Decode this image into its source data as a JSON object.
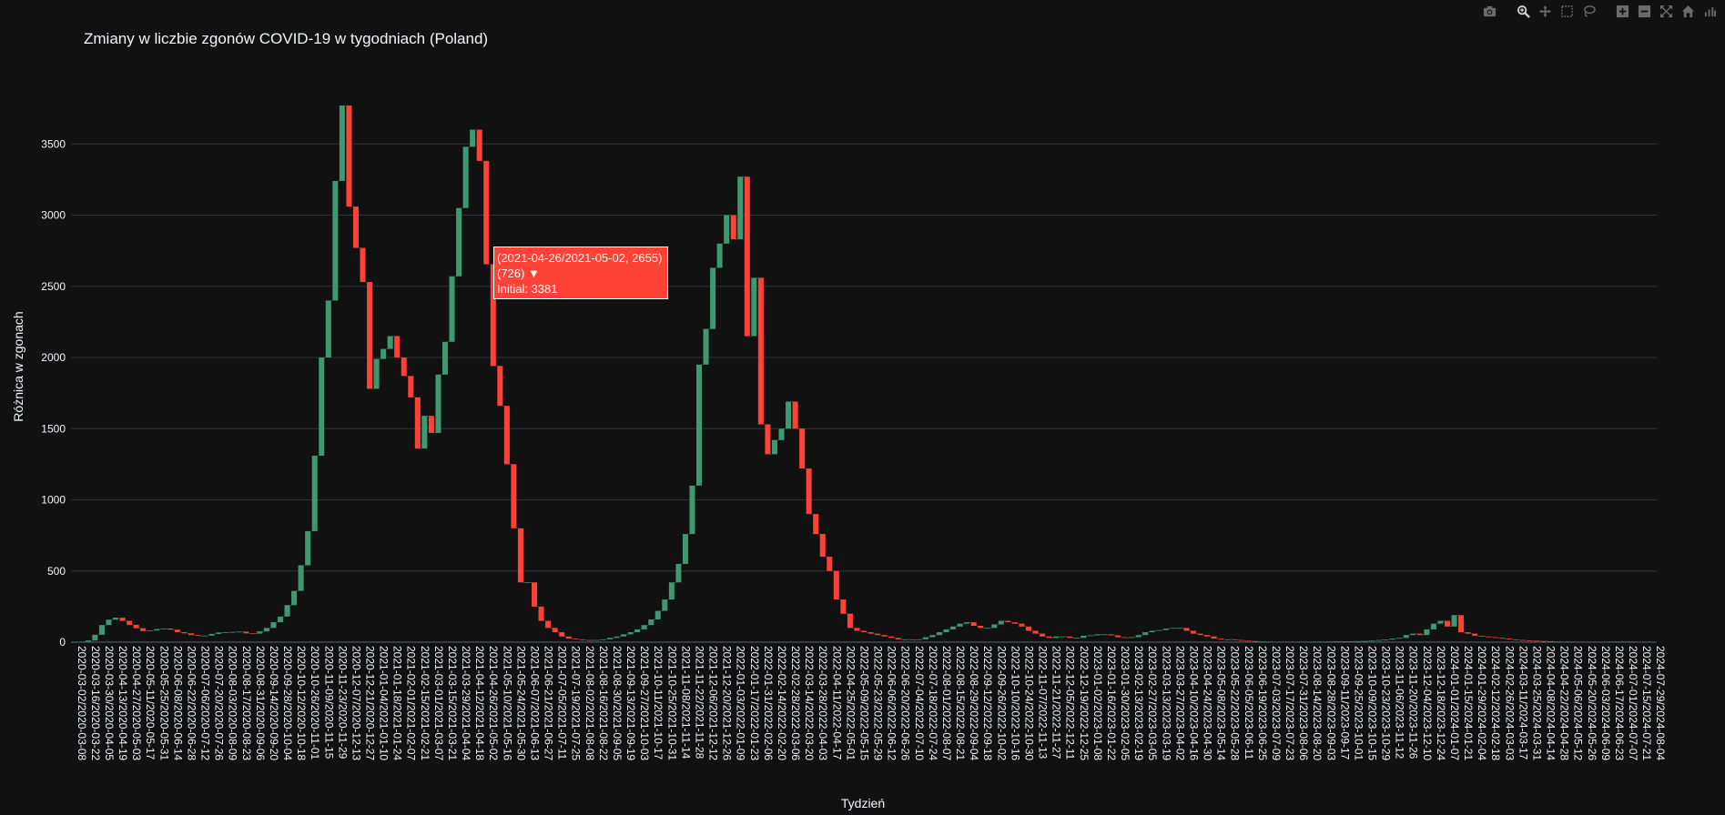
{
  "toolbar": {
    "buttons": [
      {
        "name": "camera-icon",
        "label": "Download plot as a png"
      },
      {
        "name": "zoom-icon",
        "label": "Zoom"
      },
      {
        "name": "pan-icon",
        "label": "Pan"
      },
      {
        "name": "box-select-icon",
        "label": "Box Select"
      },
      {
        "name": "lasso-select-icon",
        "label": "Lasso Select"
      },
      {
        "name": "zoom-in-icon",
        "label": "Zoom in"
      },
      {
        "name": "zoom-out-icon",
        "label": "Zoom out"
      },
      {
        "name": "autoscale-icon",
        "label": "Autoscale"
      },
      {
        "name": "home-icon",
        "label": "Reset axes"
      },
      {
        "name": "plotly-logo-icon",
        "label": "Produced with Plotly"
      }
    ]
  },
  "tooltip": {
    "line1": "(2021-04-26/2021-05-02, 2655)",
    "line2": "(726) ▼",
    "line3": "Initial: 3381"
  },
  "colors": {
    "increase": "#3d9970",
    "decrease": "#ff4136",
    "background": "#111111",
    "grid": "#283442",
    "text": "#f2f5fa"
  },
  "chart_data": {
    "type": "waterfall",
    "title": "Zmiany w liczbie zgonów COVID-19 w tygodniach (Poland)",
    "xlabel": "Tydzień",
    "ylabel": "Różnica w zgonach",
    "ylim": [
      0,
      4000
    ],
    "yticks": [
      0,
      500,
      1000,
      1500,
      2000,
      2500,
      3000,
      3500
    ],
    "grid": true,
    "start_week": "2020-03-02",
    "weekly_totals": [
      1,
      4,
      12,
      52,
      120,
      158,
      172,
      150,
      122,
      98,
      78,
      82,
      92,
      96,
      88,
      70,
      62,
      50,
      44,
      46,
      58,
      68,
      70,
      72,
      74,
      62,
      60,
      76,
      100,
      140,
      180,
      260,
      360,
      540,
      780,
      1310,
      2000,
      2400,
      3240,
      3770,
      3060,
      2770,
      2530,
      1780,
      1990,
      2060,
      2150,
      2000,
      1870,
      1720,
      1360,
      1590,
      1470,
      1880,
      2110,
      2570,
      3050,
      3480,
      3600,
      3381,
      2655,
      1940,
      1660,
      1250,
      800,
      420,
      420,
      250,
      150,
      100,
      70,
      40,
      25,
      20,
      15,
      12,
      15,
      20,
      30,
      40,
      55,
      70,
      90,
      120,
      160,
      220,
      300,
      420,
      550,
      760,
      1100,
      1950,
      2200,
      2630,
      2800,
      3000,
      2830,
      3270,
      2150,
      2560,
      1530,
      1320,
      1420,
      1500,
      1690,
      1500,
      1220,
      900,
      760,
      600,
      500,
      300,
      200,
      100,
      80,
      70,
      60,
      50,
      40,
      30,
      20,
      20,
      15,
      20,
      35,
      50,
      70,
      90,
      110,
      130,
      140,
      115,
      100,
      100,
      125,
      150,
      140,
      130,
      110,
      80,
      60,
      40,
      30,
      40,
      40,
      30,
      30,
      45,
      48,
      55,
      55,
      48,
      35,
      30,
      35,
      50,
      70,
      80,
      85,
      95,
      100,
      100,
      80,
      60,
      50,
      40,
      25,
      20,
      20,
      15,
      10,
      8,
      5,
      4,
      3,
      3,
      3,
      3,
      3,
      3,
      3,
      4,
      4,
      5,
      6,
      5,
      6,
      7,
      8,
      10,
      15,
      18,
      25,
      30,
      50,
      60,
      50,
      90,
      130,
      150,
      110,
      190,
      70,
      60,
      45,
      40,
      35,
      30,
      25,
      20,
      15,
      12,
      10,
      8,
      7,
      5,
      4,
      4,
      3,
      3,
      3,
      3,
      3,
      3,
      4,
      4,
      4,
      3,
      3,
      3,
      3
    ],
    "tick_labels": [
      "2020-03-02/2020-03-08",
      "2020-03-16/2020-03-22",
      "2020-03-30/2020-04-05",
      "2020-04-13/2020-04-19",
      "2020-04-27/2020-05-03",
      "2020-05-11/2020-05-17",
      "2020-05-25/2020-05-31",
      "2020-06-08/2020-06-14",
      "2020-06-22/2020-06-28",
      "2020-07-06/2020-07-12",
      "2020-07-20/2020-07-26",
      "2020-08-03/2020-08-09",
      "2020-08-17/2020-08-23",
      "2020-08-31/2020-09-06",
      "2020-09-14/2020-09-20",
      "2020-09-28/2020-10-04",
      "2020-10-12/2020-10-18",
      "2020-10-26/2020-11-01",
      "2020-11-09/2020-11-15",
      "2020-11-23/2020-11-29",
      "2020-12-07/2020-12-13",
      "2020-12-21/2020-12-27",
      "2021-01-04/2021-01-10",
      "2021-01-18/2021-01-24",
      "2021-02-01/2021-02-07",
      "2021-02-15/2021-02-21",
      "2021-03-01/2021-03-07",
      "2021-03-15/2021-03-21",
      "2021-03-29/2021-04-04",
      "2021-04-12/2021-04-18",
      "2021-04-26/2021-05-02",
      "2021-05-10/2021-05-16",
      "2021-05-24/2021-05-30",
      "2021-06-07/2021-06-13",
      "2021-06-21/2021-06-27",
      "2021-07-05/2021-07-11",
      "2021-07-19/2021-07-25",
      "2021-08-02/2021-08-08",
      "2021-08-16/2021-08-22",
      "2021-08-30/2021-09-05",
      "2021-09-13/2021-09-19",
      "2021-09-27/2021-10-03",
      "2021-10-11/2021-10-17",
      "2021-10-25/2021-10-31",
      "2021-11-08/2021-11-14",
      "2021-11-22/2021-11-28",
      "2021-12-06/2021-12-12",
      "2021-12-20/2021-12-26",
      "2022-01-03/2022-01-09",
      "2022-01-17/2022-01-23",
      "2022-01-31/2022-02-06",
      "2022-02-14/2022-02-20",
      "2022-02-28/2022-03-06",
      "2022-03-14/2022-03-20",
      "2022-03-28/2022-04-03",
      "2022-04-11/2022-04-17",
      "2022-04-25/2022-05-01",
      "2022-05-09/2022-05-15",
      "2022-05-23/2022-05-29",
      "2022-06-06/2022-06-12",
      "2022-06-20/2022-06-26",
      "2022-07-04/2022-07-10",
      "2022-07-18/2022-07-24",
      "2022-08-01/2022-08-07",
      "2022-08-15/2022-08-21",
      "2022-08-29/2022-09-04",
      "2022-09-12/2022-09-18",
      "2022-09-26/2022-10-02",
      "2022-10-10/2022-10-16",
      "2022-10-24/2022-10-30",
      "2022-11-07/2022-11-13",
      "2022-11-21/2022-11-27",
      "2022-12-05/2022-12-11",
      "2022-12-19/2022-12-25",
      "2023-01-02/2023-01-08",
      "2023-01-16/2023-01-22",
      "2023-01-30/2023-02-05",
      "2023-02-13/2023-02-19",
      "2023-02-27/2023-03-05",
      "2023-03-13/2023-03-19",
      "2023-03-27/2023-04-02",
      "2023-04-10/2023-04-16",
      "2023-04-24/2023-04-30",
      "2023-05-08/2023-05-14",
      "2023-05-22/2023-05-28",
      "2023-06-05/2023-06-11",
      "2023-06-19/2023-06-25",
      "2023-07-03/2023-07-09",
      "2023-07-17/2023-07-23",
      "2023-07-31/2023-08-06",
      "2023-08-14/2023-08-20",
      "2023-08-28/2023-09-03",
      "2023-09-11/2023-09-17",
      "2023-09-25/2023-10-01",
      "2023-10-09/2023-10-15",
      "2023-10-23/2023-10-29",
      "2023-11-06/2023-11-12",
      "2023-11-20/2023-11-26",
      "2023-12-04/2023-12-10",
      "2023-12-18/2023-12-24",
      "2024-01-01/2024-01-07",
      "2024-01-15/2024-01-21",
      "2024-01-29/2024-02-04",
      "2024-02-12/2024-02-18",
      "2024-02-26/2024-03-03",
      "2024-03-11/2024-03-17",
      "2024-03-25/2024-03-31",
      "2024-04-08/2024-04-14",
      "2024-04-22/2024-04-28",
      "2024-05-06/2024-05-12",
      "2024-05-20/2024-05-26",
      "2024-06-03/2024-06-09",
      "2024-06-17/2024-06-23",
      "2024-07-01/2024-07-07",
      "2024-07-15/2024-07-21",
      "2024-07-29/2024-08-04"
    ]
  }
}
